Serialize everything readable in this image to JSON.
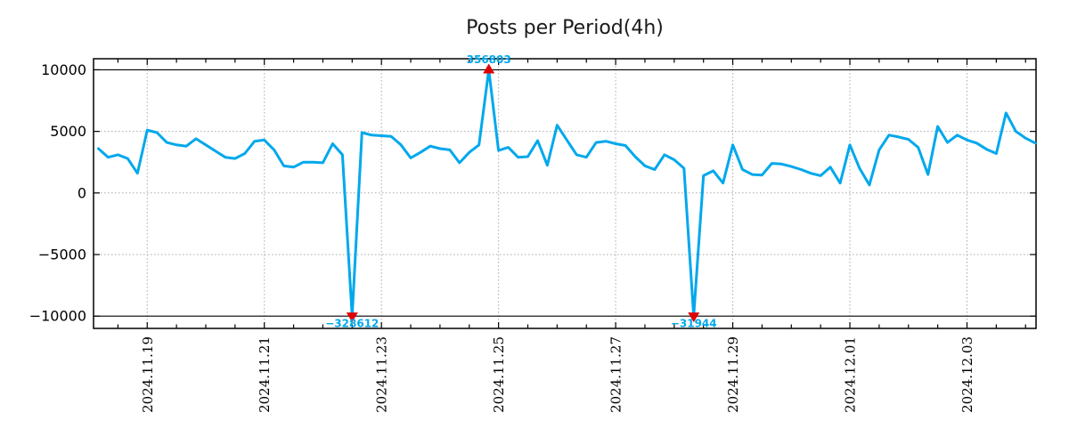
{
  "title": "Posts per Period(4h)",
  "colors": {
    "line": "#00a8ec",
    "marker": "#e00000",
    "annotation": "#00a8ec",
    "grid": "#aaaaaa",
    "axis": "#000000",
    "background": "#ffffff"
  },
  "chart_data": {
    "type": "line",
    "title": "Posts per Period(4h)",
    "xlabel": "",
    "ylabel": "",
    "series_name": "posts-per-4h-period",
    "x_start": "2024-11-18 04:00",
    "x_step_hours": 4,
    "values": [
      3600,
      2900,
      3100,
      2800,
      1600,
      5100,
      4900,
      4100,
      3900,
      3800,
      4400,
      3900,
      3400,
      2900,
      2800,
      3200,
      4200,
      4300,
      3500,
      2200,
      2100,
      2500,
      2500,
      2450,
      4000,
      3100,
      -328612,
      4900,
      4700,
      4650,
      4600,
      3900,
      2850,
      3300,
      3800,
      3600,
      3500,
      2450,
      3300,
      3900,
      356803,
      3450,
      3700,
      2900,
      2950,
      4250,
      2250,
      5500,
      4300,
      3100,
      2900,
      4100,
      4200,
      4000,
      3850,
      2950,
      2200,
      1900,
      3100,
      2700,
      2000,
      -31944,
      1400,
      1800,
      800,
      3900,
      1900,
      1500,
      1450,
      2400,
      2350,
      2150,
      1900,
      1600,
      1400,
      2100,
      800,
      3900,
      1990,
      650,
      3500,
      4700,
      4550,
      4350,
      3700,
      1500,
      5400,
      4100,
      4700,
      4300,
      4050,
      3550,
      3200,
      6500,
      5000,
      4450,
      4050
    ],
    "clipped_at": [
      -10000,
      10000
    ],
    "ylim": [
      -11000,
      10900
    ],
    "y_ticks": [
      10000,
      5000,
      0,
      -5000,
      -10000
    ],
    "x_tick_labels": [
      "2024.11.19",
      "2024.11.21",
      "2024.11.23",
      "2024.11.25",
      "2024.11.27",
      "2024.11.29",
      "2024.12.01",
      "2024.12.03"
    ],
    "grid": "dotted, vertical at every 2 days, horizontal at 5000/0/-5000, solid black lines at +10000 and -10000",
    "legend": "none",
    "annotations": [
      {
        "label": "356803",
        "value": 356803,
        "time": "2024-11-24 20:00",
        "index": 40,
        "marker": "caret-up",
        "clipped_to": 10000
      },
      {
        "label": "−328612",
        "value": -328612,
        "time": "2024-11-22 12:00",
        "index": 26,
        "marker": "caret-down",
        "clipped_to": -10000
      },
      {
        "label": "−31944",
        "value": -31944,
        "time": "2024-11-28 08:00",
        "index": 61,
        "marker": "caret-down",
        "clipped_to": -10000
      }
    ]
  }
}
